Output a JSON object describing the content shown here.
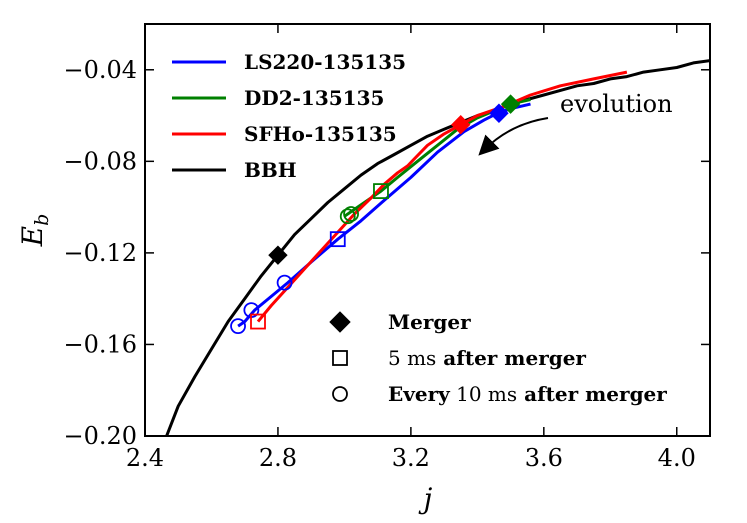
{
  "chart_data": {
    "type": "line",
    "title": "",
    "xlabel": "j",
    "ylabel": "E_b",
    "xlim": [
      2.4,
      4.1
    ],
    "ylim": [
      -0.2,
      -0.02
    ],
    "xticks": [
      "2.4",
      "2.8",
      "3.2",
      "3.6",
      "4.0"
    ],
    "yticks": [
      "−0.04",
      "−0.08",
      "−0.12",
      "−0.16",
      "−0.20"
    ],
    "xtick_values": [
      2.4,
      2.8,
      3.2,
      3.6,
      4.0
    ],
    "ytick_values": [
      -0.04,
      -0.08,
      -0.12,
      -0.16,
      -0.2
    ],
    "grid": false,
    "legend_position": "top-left",
    "series": [
      {
        "name": "LS220-135135",
        "color": "#0000ff",
        "x": [
          2.68,
          2.7,
          2.73,
          2.78,
          2.83,
          2.9,
          2.98,
          3.05,
          3.12,
          3.2,
          3.28,
          3.36,
          3.42,
          3.46,
          3.5,
          3.56
        ],
        "y": [
          -0.152,
          -0.15,
          -0.145,
          -0.139,
          -0.133,
          -0.124,
          -0.114,
          -0.106,
          -0.097,
          -0.087,
          -0.076,
          -0.067,
          -0.062,
          -0.059,
          -0.057,
          -0.055
        ],
        "merger": [
          3.465,
          -0.059
        ],
        "after_5ms": [
          2.98,
          -0.114
        ],
        "every_10ms": [
          [
            2.82,
            -0.133
          ],
          [
            2.72,
            -0.145
          ],
          [
            2.68,
            -0.152
          ]
        ]
      },
      {
        "name": "DD2-135135",
        "color": "#008000",
        "x": [
          3.0,
          3.03,
          3.07,
          3.11,
          3.16,
          3.22,
          3.28,
          3.34,
          3.4,
          3.45,
          3.5,
          3.56
        ],
        "y": [
          -0.104,
          -0.101,
          -0.097,
          -0.093,
          -0.087,
          -0.08,
          -0.073,
          -0.066,
          -0.061,
          -0.058,
          -0.055,
          -0.053
        ],
        "merger": [
          3.5,
          -0.055
        ],
        "after_5ms": [
          3.11,
          -0.093
        ],
        "every_10ms": [
          [
            3.02,
            -0.103
          ],
          [
            3.01,
            -0.104
          ]
        ]
      },
      {
        "name": "SFHo-135135",
        "color": "#ff0000",
        "x": [
          2.74,
          2.78,
          2.83,
          2.88,
          2.93,
          2.98,
          3.03,
          3.08,
          3.12,
          3.16,
          3.19,
          3.21,
          3.25,
          3.3,
          3.35,
          3.4,
          3.48,
          3.56,
          3.65,
          3.75,
          3.85
        ],
        "y": [
          -0.15,
          -0.143,
          -0.135,
          -0.127,
          -0.119,
          -0.111,
          -0.103,
          -0.096,
          -0.09,
          -0.085,
          -0.082,
          -0.079,
          -0.073,
          -0.068,
          -0.064,
          -0.06,
          -0.056,
          -0.051,
          -0.047,
          -0.044,
          -0.041
        ],
        "merger": [
          3.35,
          -0.064
        ],
        "after_5ms": [
          2.74,
          -0.15
        ],
        "every_10ms": []
      },
      {
        "name": "BBH",
        "color": "#000000",
        "x": [
          2.465,
          2.5,
          2.55,
          2.6,
          2.65,
          2.7,
          2.75,
          2.8,
          2.85,
          2.9,
          2.95,
          3.0,
          3.05,
          3.1,
          3.15,
          3.2,
          3.25,
          3.3,
          3.35,
          3.4,
          3.45,
          3.5,
          3.55,
          3.6,
          3.65,
          3.7,
          3.75,
          3.8,
          3.85,
          3.9,
          3.95,
          4.0,
          4.05,
          4.1
        ],
        "y": [
          -0.2,
          -0.187,
          -0.174,
          -0.162,
          -0.15,
          -0.14,
          -0.13,
          -0.121,
          -0.112,
          -0.105,
          -0.098,
          -0.092,
          -0.086,
          -0.081,
          -0.077,
          -0.073,
          -0.069,
          -0.066,
          -0.063,
          -0.06,
          -0.058,
          -0.055,
          -0.053,
          -0.051,
          -0.049,
          -0.047,
          -0.046,
          -0.044,
          -0.043,
          -0.041,
          -0.04,
          -0.039,
          -0.037,
          -0.036
        ],
        "merger": [
          2.8,
          -0.121
        ],
        "after_5ms": null,
        "every_10ms": []
      }
    ],
    "marker_legend": [
      {
        "symbol": "diamond",
        "label_bold": "Merger",
        "label_num": "",
        "label_tail": ""
      },
      {
        "symbol": "square",
        "label_bold": "",
        "label_num": "5 ms",
        "label_tail": "after merger"
      },
      {
        "symbol": "circle",
        "label_bold": "Every",
        "label_num": "10 ms",
        "label_tail": "after merger"
      }
    ],
    "annotation": {
      "text": "evolution"
    }
  }
}
